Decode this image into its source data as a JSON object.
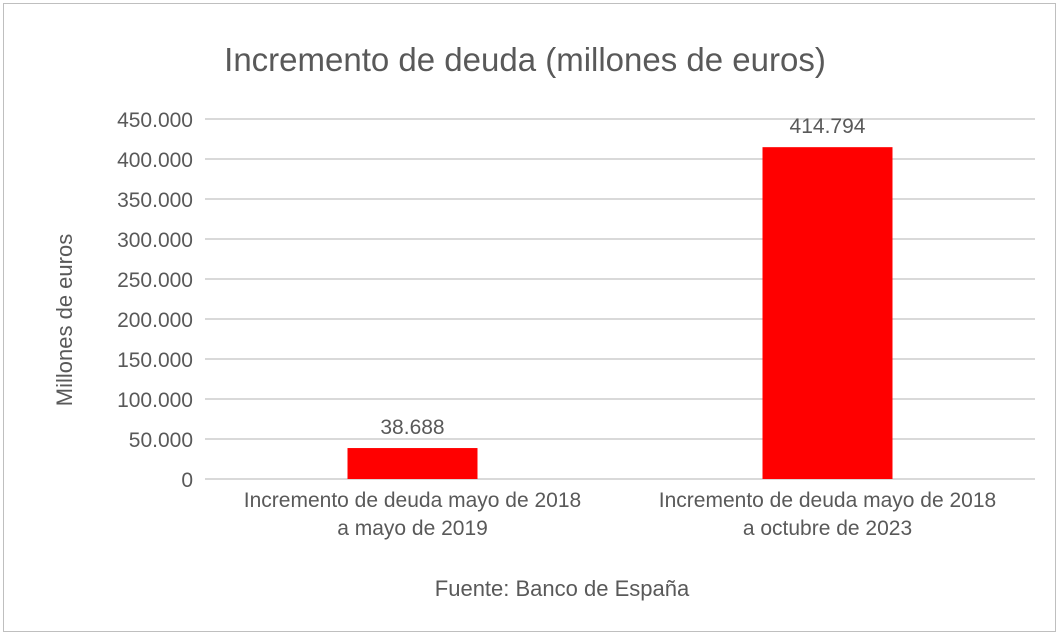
{
  "chart_data": {
    "type": "bar",
    "title": "Incremento de deuda (millones de euros)",
    "ylabel": "Millones de euros",
    "xlabel": "Fuente: Banco de España",
    "categories": [
      [
        "Incremento de deuda mayo de 2018",
        "a mayo de 2019"
      ],
      [
        "Incremento de deuda mayo de 2018",
        "a octubre de 2023"
      ]
    ],
    "values": [
      38688,
      414794
    ],
    "data_labels": [
      "38.688",
      "414.794"
    ],
    "ylim": [
      0,
      450000
    ],
    "yticks": [
      0,
      50000,
      100000,
      150000,
      200000,
      250000,
      300000,
      350000,
      400000,
      450000
    ],
    "ytick_labels": [
      "0",
      "50.000",
      "100.000",
      "150.000",
      "200.000",
      "250.000",
      "300.000",
      "350.000",
      "400.000",
      "450.000"
    ],
    "grid": true,
    "bar_color": "#ff0000",
    "grid_color": "#d9d9d9",
    "text_color": "#595959"
  }
}
